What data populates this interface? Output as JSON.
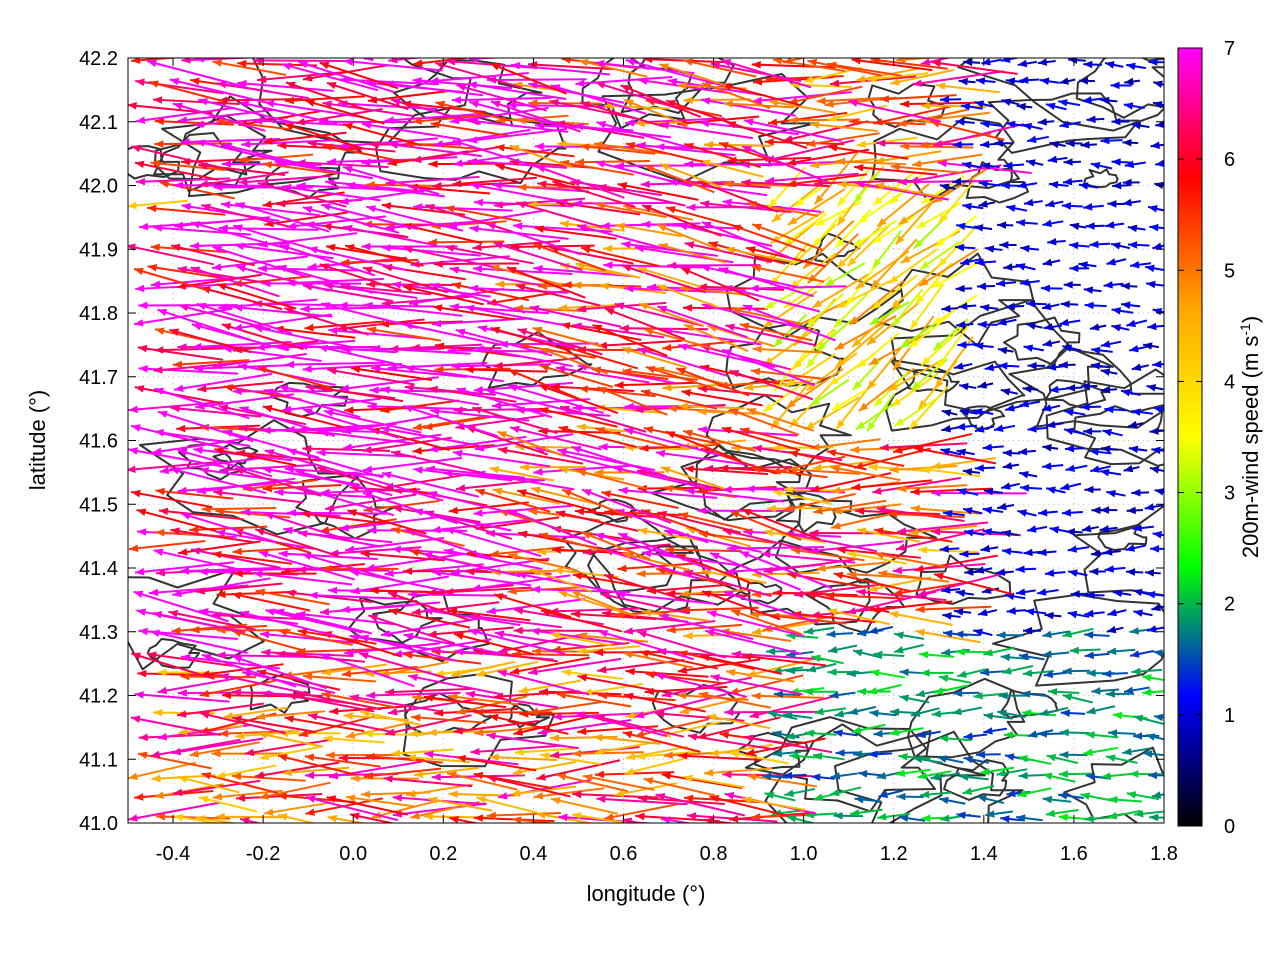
{
  "chart_data": {
    "type": "vector-field",
    "xlabel": "longitude (°)",
    "ylabel": "latitude (°)",
    "colorbar_label": "200m-wind speed (m s",
    "colorbar_label_sup": "-1",
    "colorbar_label_close": ")",
    "xlim": [
      -0.5,
      1.8
    ],
    "ylim": [
      41.0,
      42.2
    ],
    "clim": [
      0,
      7
    ],
    "x_ticks": [
      {
        "v": -0.4,
        "label": "-0.4"
      },
      {
        "v": -0.2,
        "label": "-0.2"
      },
      {
        "v": 0.0,
        "label": "0.0"
      },
      {
        "v": 0.2,
        "label": "0.2"
      },
      {
        "v": 0.4,
        "label": "0.4"
      },
      {
        "v": 0.6,
        "label": "0.6"
      },
      {
        "v": 0.8,
        "label": "0.8"
      },
      {
        "v": 1.0,
        "label": "1.0"
      },
      {
        "v": 1.2,
        "label": "1.2"
      },
      {
        "v": 1.4,
        "label": "1.4"
      },
      {
        "v": 1.6,
        "label": "1.6"
      },
      {
        "v": 1.8,
        "label": "1.8"
      }
    ],
    "y_ticks": [
      {
        "v": 41.0,
        "label": "41.0"
      },
      {
        "v": 41.1,
        "label": "41.1"
      },
      {
        "v": 41.2,
        "label": "41.2"
      },
      {
        "v": 41.3,
        "label": "41.3"
      },
      {
        "v": 41.4,
        "label": "41.4"
      },
      {
        "v": 41.5,
        "label": "41.5"
      },
      {
        "v": 41.6,
        "label": "41.6"
      },
      {
        "v": 41.7,
        "label": "41.7"
      },
      {
        "v": 41.8,
        "label": "41.8"
      },
      {
        "v": 41.9,
        "label": "41.9"
      },
      {
        "v": 42.0,
        "label": "42.0"
      },
      {
        "v": 42.1,
        "label": "42.1"
      },
      {
        "v": 42.2,
        "label": "42.2"
      }
    ],
    "colorbar_ticks": [
      {
        "v": 0,
        "label": "0"
      },
      {
        "v": 1,
        "label": "1"
      },
      {
        "v": 2,
        "label": "2"
      },
      {
        "v": 3,
        "label": "3"
      },
      {
        "v": 4,
        "label": "4"
      },
      {
        "v": 5,
        "label": "5"
      },
      {
        "v": 6,
        "label": "6"
      },
      {
        "v": 7,
        "label": "7"
      }
    ],
    "palette": [
      "#000000",
      "#0000ff",
      "#00ff00",
      "#ffff00",
      "#ffa500",
      "#ff0000",
      "#ff00ff"
    ],
    "grid": "dotted",
    "arrow_sample_regions": [
      {
        "lon": [
          -0.5,
          0.3
        ],
        "lat": [
          41.25,
          42.2
        ],
        "speed": 7.0,
        "u": -1.0,
        "v": 0.08
      },
      {
        "lon": [
          0.3,
          0.9
        ],
        "lat": [
          41.3,
          42.2
        ],
        "speed": 6.0,
        "u": -1.0,
        "v": 0.15
      },
      {
        "lon": [
          0.9,
          1.3
        ],
        "lat": [
          41.6,
          42.0
        ],
        "speed": 4.0,
        "u": -0.7,
        "v": -0.6
      },
      {
        "lon": [
          1.3,
          1.8
        ],
        "lat": [
          41.3,
          42.2
        ],
        "speed": 1.0,
        "u": -1.0,
        "v": 0.0
      },
      {
        "lon": [
          0.9,
          1.8
        ],
        "lat": [
          41.0,
          41.3
        ],
        "speed": 1.8,
        "u": -1.0,
        "v": 0.0
      },
      {
        "lon": [
          -0.5,
          0.9
        ],
        "lat": [
          41.0,
          41.25
        ],
        "speed": 5.5,
        "u": -1.0,
        "v": 0.0
      }
    ]
  }
}
